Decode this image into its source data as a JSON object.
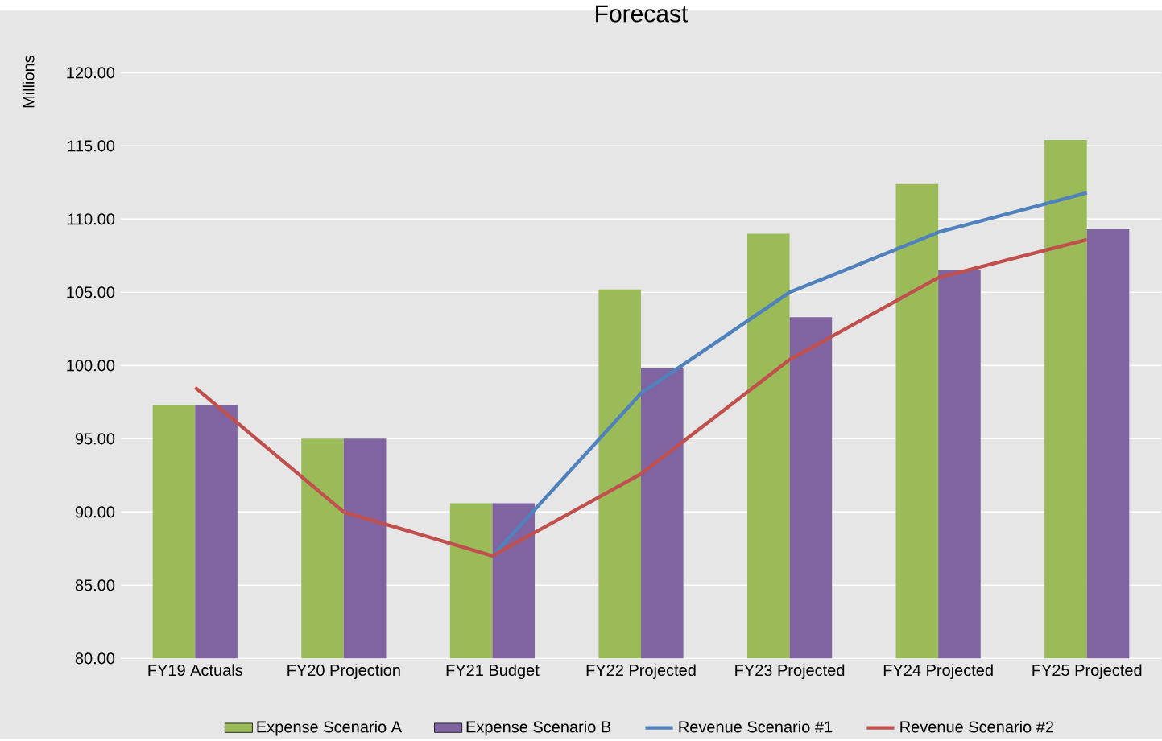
{
  "chart_data": {
    "type": "bar",
    "title": "Forecast",
    "ylabel": "Millions",
    "categories": [
      "FY19 Actuals",
      "FY20 Projection",
      "FY21 Budget",
      "FY22 Projected",
      "FY23 Projected",
      "FY24 Projected",
      "FY25 Projected"
    ],
    "series": [
      {
        "name": "Expense Scenario A",
        "color": "#9bbb59",
        "values": [
          97.3,
          95.0,
          90.6,
          105.2,
          109.0,
          112.4,
          115.4
        ]
      },
      {
        "name": "Expense Scenario B",
        "color": "#8064a2",
        "values": [
          97.3,
          95.0,
          90.6,
          99.8,
          103.3,
          106.5,
          109.3
        ]
      },
      {
        "name": "Revenue Scenario #1",
        "type": "line",
        "color": "#4f81bd",
        "values": [
          null,
          null,
          87.0,
          98.1,
          105.0,
          109.1,
          111.8
        ]
      },
      {
        "name": "Revenue Scenario #2",
        "type": "line",
        "color": "#c0504d",
        "values": [
          98.5,
          90.0,
          87.0,
          92.6,
          100.4,
          106.0,
          108.6
        ]
      }
    ],
    "ylim": [
      80,
      120
    ],
    "yticks": [
      {
        "value": 80,
        "label": "80.00"
      },
      {
        "value": 85,
        "label": "85.00"
      },
      {
        "value": 90,
        "label": "90.00"
      },
      {
        "value": 95,
        "label": "95.00"
      },
      {
        "value": 100,
        "label": "100.00"
      },
      {
        "value": 105,
        "label": "105.00"
      },
      {
        "value": 110,
        "label": "110.00"
      },
      {
        "value": 115,
        "label": "115.00"
      },
      {
        "value": 120,
        "label": "120.00"
      }
    ],
    "grid": "y",
    "legend": "bottom",
    "marker": "none",
    "line_style": "solid"
  }
}
